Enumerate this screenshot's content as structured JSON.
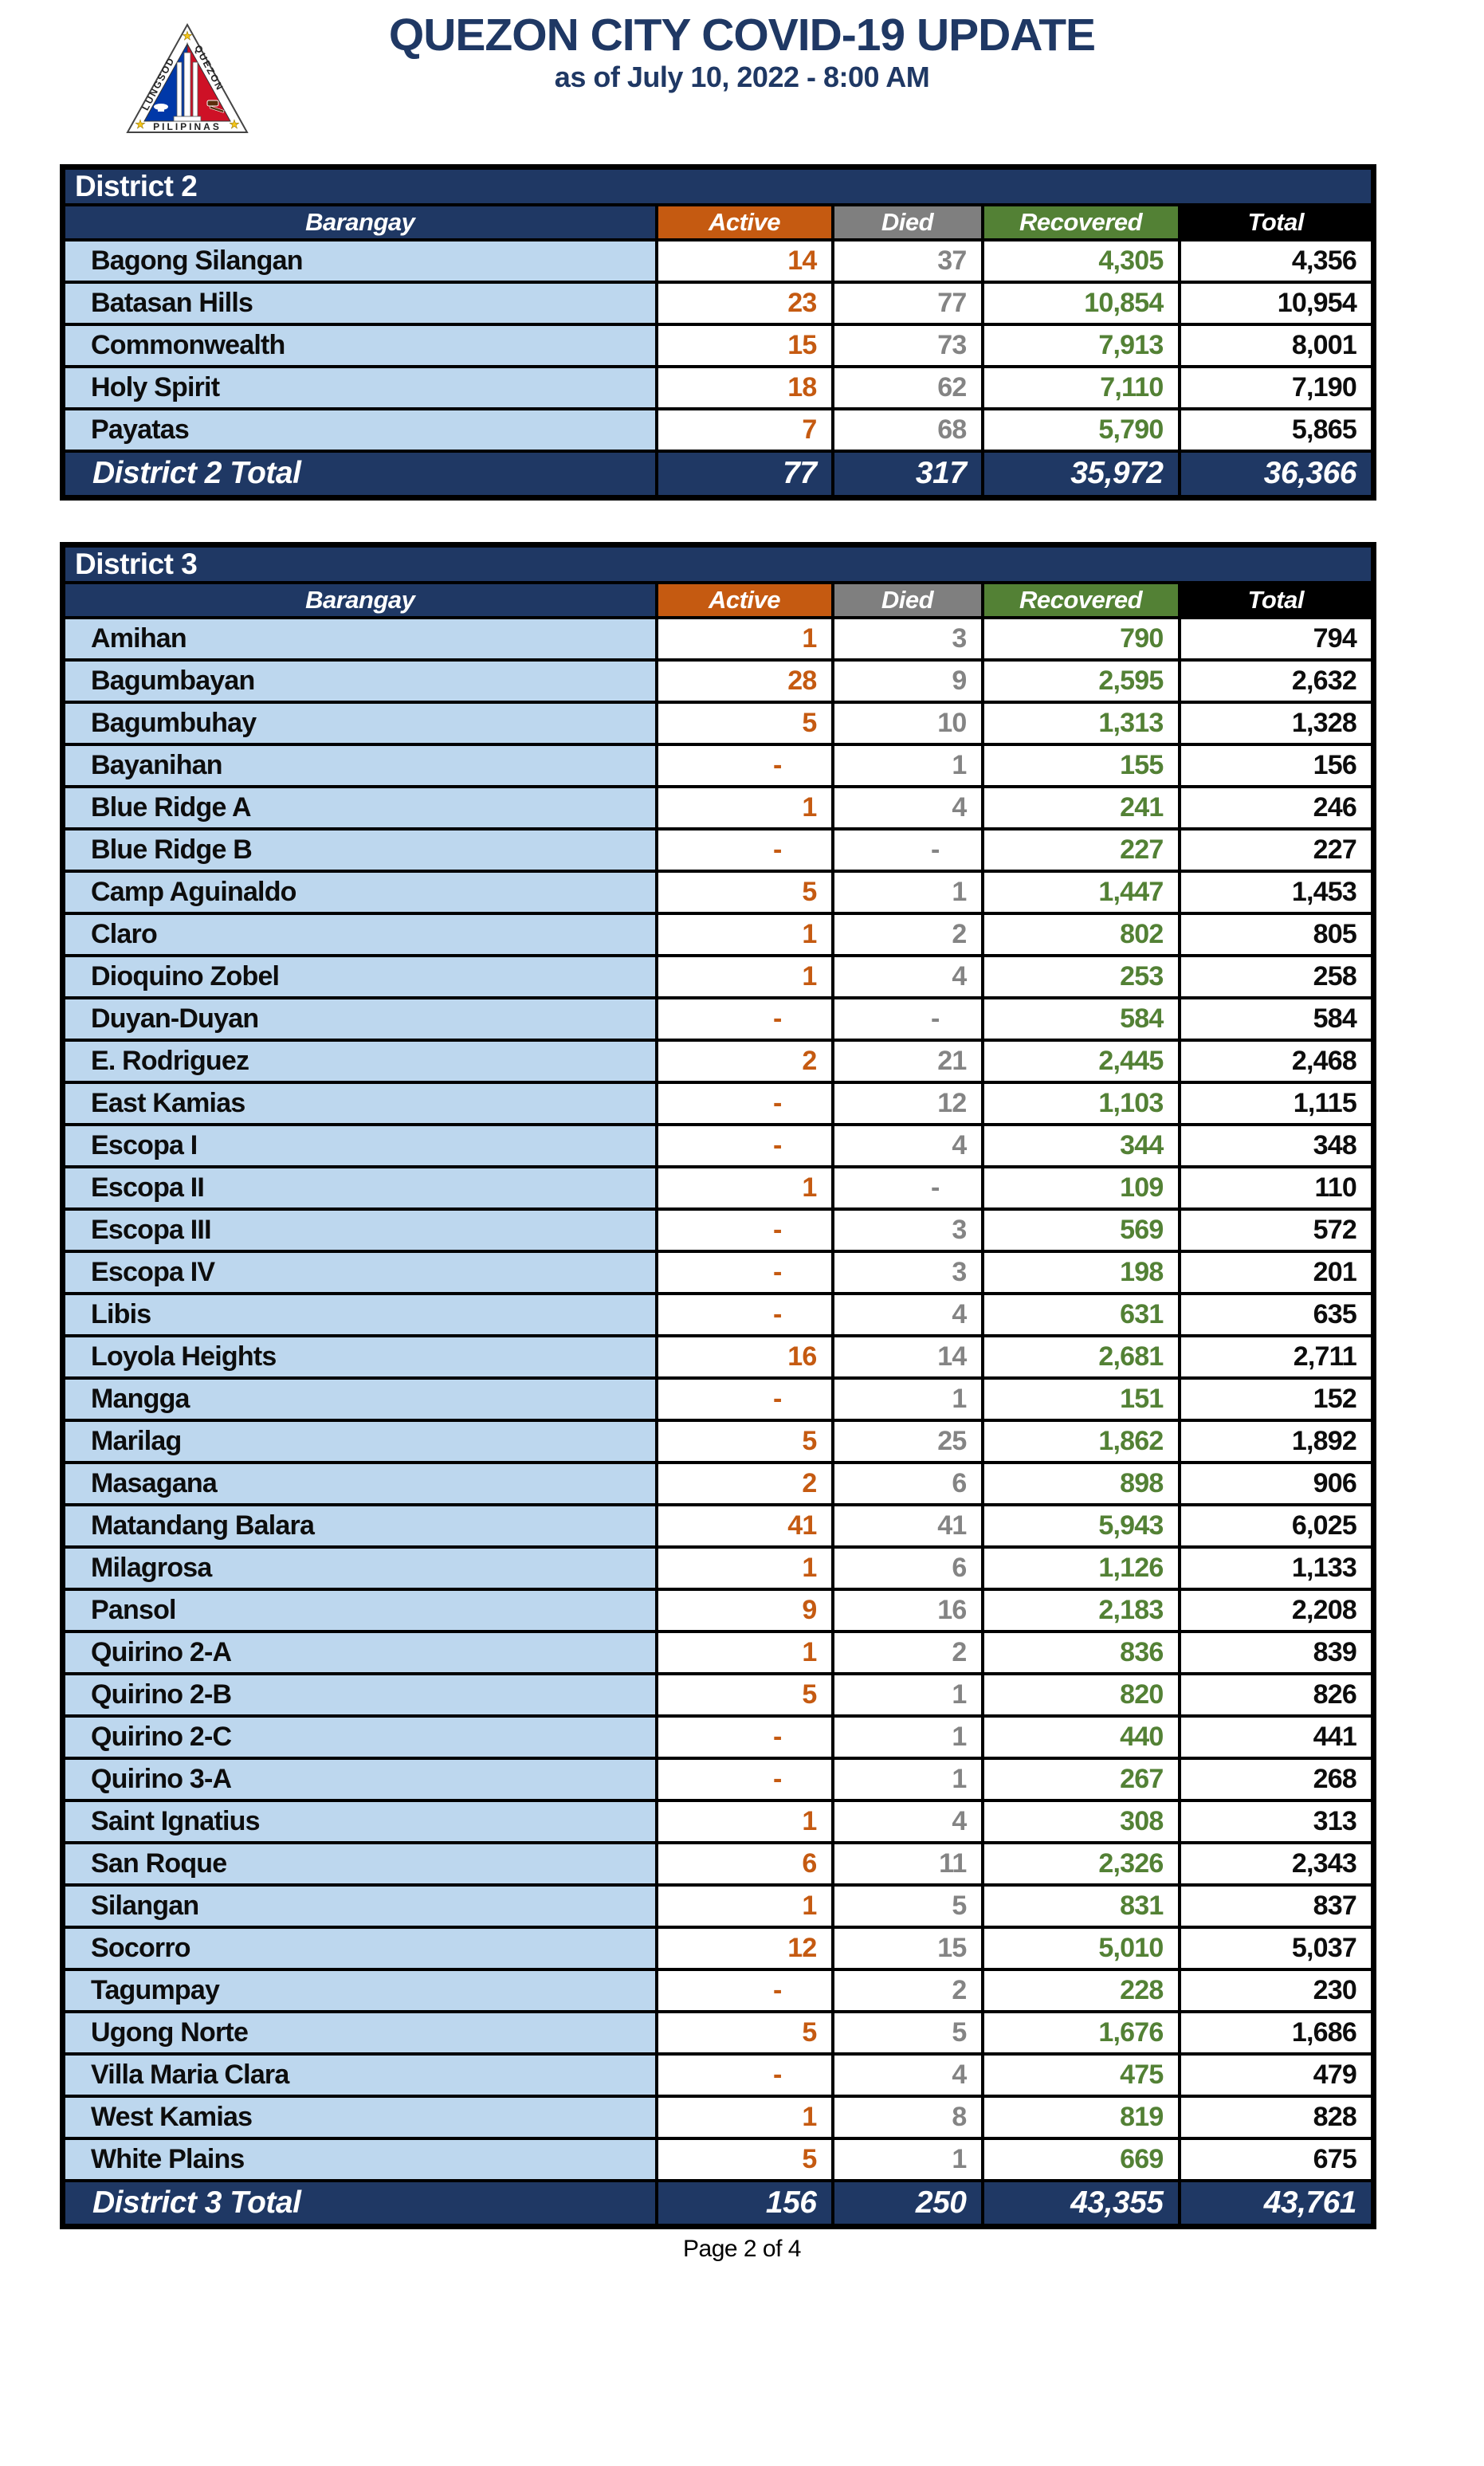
{
  "page": {
    "title": "QUEZON CITY COVID-19 UPDATE",
    "subtitle": "as of July 10, 2022 - 8:00 AM",
    "footer": "Page 2 of 4",
    "logo": {
      "name": "quezon-city-seal",
      "text_left": "LUNGSOD",
      "text_right": "QUEZON",
      "text_bottom": "PILIPINAS"
    }
  },
  "colors": {
    "navy": "#1F3864",
    "light_blue": "#BDD7EE",
    "orange": "#C55A11",
    "gray_header": "#7F7F7F",
    "gray_number": "#848484",
    "green": "#538135",
    "total_header_black": "#000000",
    "title_blue": "#1F3864",
    "seal_blue": "#0038A8",
    "seal_red": "#CE1126",
    "seal_star_yellow": "#F5C518"
  },
  "columns": [
    "Barangay",
    "Active",
    "Died",
    "Recovered",
    "Total"
  ],
  "tables": [
    {
      "district": "District 2",
      "total_label": "District 2 Total",
      "rows": [
        {
          "barangay": "Bagong Silangan",
          "active": "14",
          "died": "37",
          "recovered": "4,305",
          "total": "4,356"
        },
        {
          "barangay": "Batasan Hills",
          "active": "23",
          "died": "77",
          "recovered": "10,854",
          "total": "10,954"
        },
        {
          "barangay": "Commonwealth",
          "active": "15",
          "died": "73",
          "recovered": "7,913",
          "total": "8,001"
        },
        {
          "barangay": "Holy Spirit",
          "active": "18",
          "died": "62",
          "recovered": "7,110",
          "total": "7,190"
        },
        {
          "barangay": "Payatas",
          "active": "7",
          "died": "68",
          "recovered": "5,790",
          "total": "5,865"
        }
      ],
      "totals": {
        "active": "77",
        "died": "317",
        "recovered": "35,972",
        "total": "36,366"
      }
    },
    {
      "district": "District 3",
      "total_label": "District 3 Total",
      "rows": [
        {
          "barangay": "Amihan",
          "active": "1",
          "died": "3",
          "recovered": "790",
          "total": "794"
        },
        {
          "barangay": "Bagumbayan",
          "active": "28",
          "died": "9",
          "recovered": "2,595",
          "total": "2,632"
        },
        {
          "barangay": "Bagumbuhay",
          "active": "5",
          "died": "10",
          "recovered": "1,313",
          "total": "1,328"
        },
        {
          "barangay": "Bayanihan",
          "active": "-",
          "died": "1",
          "recovered": "155",
          "total": "156"
        },
        {
          "barangay": "Blue Ridge A",
          "active": "1",
          "died": "4",
          "recovered": "241",
          "total": "246"
        },
        {
          "barangay": "Blue Ridge B",
          "active": "-",
          "died": "-",
          "recovered": "227",
          "total": "227"
        },
        {
          "barangay": "Camp Aguinaldo",
          "active": "5",
          "died": "1",
          "recovered": "1,447",
          "total": "1,453"
        },
        {
          "barangay": "Claro",
          "active": "1",
          "died": "2",
          "recovered": "802",
          "total": "805"
        },
        {
          "barangay": "Dioquino Zobel",
          "active": "1",
          "died": "4",
          "recovered": "253",
          "total": "258"
        },
        {
          "barangay": "Duyan-Duyan",
          "active": "-",
          "died": "-",
          "recovered": "584",
          "total": "584"
        },
        {
          "barangay": "E. Rodriguez",
          "active": "2",
          "died": "21",
          "recovered": "2,445",
          "total": "2,468"
        },
        {
          "barangay": "East Kamias",
          "active": "-",
          "died": "12",
          "recovered": "1,103",
          "total": "1,115"
        },
        {
          "barangay": "Escopa I",
          "active": "-",
          "died": "4",
          "recovered": "344",
          "total": "348"
        },
        {
          "barangay": "Escopa II",
          "active": "1",
          "died": "-",
          "recovered": "109",
          "total": "110"
        },
        {
          "barangay": "Escopa III",
          "active": "-",
          "died": "3",
          "recovered": "569",
          "total": "572"
        },
        {
          "barangay": "Escopa IV",
          "active": "-",
          "died": "3",
          "recovered": "198",
          "total": "201"
        },
        {
          "barangay": "Libis",
          "active": "-",
          "died": "4",
          "recovered": "631",
          "total": "635"
        },
        {
          "barangay": "Loyola Heights",
          "active": "16",
          "died": "14",
          "recovered": "2,681",
          "total": "2,711"
        },
        {
          "barangay": "Mangga",
          "active": "-",
          "died": "1",
          "recovered": "151",
          "total": "152"
        },
        {
          "barangay": "Marilag",
          "active": "5",
          "died": "25",
          "recovered": "1,862",
          "total": "1,892"
        },
        {
          "barangay": "Masagana",
          "active": "2",
          "died": "6",
          "recovered": "898",
          "total": "906"
        },
        {
          "barangay": "Matandang Balara",
          "active": "41",
          "died": "41",
          "recovered": "5,943",
          "total": "6,025"
        },
        {
          "barangay": "Milagrosa",
          "active": "1",
          "died": "6",
          "recovered": "1,126",
          "total": "1,133"
        },
        {
          "barangay": "Pansol",
          "active": "9",
          "died": "16",
          "recovered": "2,183",
          "total": "2,208"
        },
        {
          "barangay": "Quirino 2-A",
          "active": "1",
          "died": "2",
          "recovered": "836",
          "total": "839"
        },
        {
          "barangay": "Quirino 2-B",
          "active": "5",
          "died": "1",
          "recovered": "820",
          "total": "826"
        },
        {
          "barangay": "Quirino 2-C",
          "active": "-",
          "died": "1",
          "recovered": "440",
          "total": "441"
        },
        {
          "barangay": "Quirino 3-A",
          "active": "-",
          "died": "1",
          "recovered": "267",
          "total": "268"
        },
        {
          "barangay": "Saint Ignatius",
          "active": "1",
          "died": "4",
          "recovered": "308",
          "total": "313"
        },
        {
          "barangay": "San Roque",
          "active": "6",
          "died": "11",
          "recovered": "2,326",
          "total": "2,343"
        },
        {
          "barangay": "Silangan",
          "active": "1",
          "died": "5",
          "recovered": "831",
          "total": "837"
        },
        {
          "barangay": "Socorro",
          "active": "12",
          "died": "15",
          "recovered": "5,010",
          "total": "5,037"
        },
        {
          "barangay": "Tagumpay",
          "active": "-",
          "died": "2",
          "recovered": "228",
          "total": "230"
        },
        {
          "barangay": "Ugong Norte",
          "active": "5",
          "died": "5",
          "recovered": "1,676",
          "total": "1,686"
        },
        {
          "barangay": "Villa Maria Clara",
          "active": "-",
          "died": "4",
          "recovered": "475",
          "total": "479"
        },
        {
          "barangay": "West Kamias",
          "active": "1",
          "died": "8",
          "recovered": "819",
          "total": "828"
        },
        {
          "barangay": "White Plains",
          "active": "5",
          "died": "1",
          "recovered": "669",
          "total": "675"
        }
      ],
      "totals": {
        "active": "156",
        "died": "250",
        "recovered": "43,355",
        "total": "43,761"
      }
    }
  ]
}
